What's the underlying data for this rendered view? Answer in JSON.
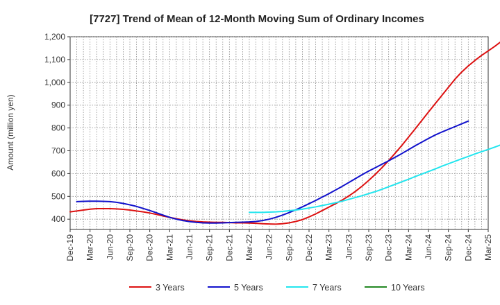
{
  "chart_data": {
    "type": "line",
    "title": "[7727]  Trend of Mean of 12-Month Moving Sum of Ordinary Incomes",
    "xlabel": "",
    "ylabel": "Amount (million yen)",
    "ylim": [
      355,
      1200
    ],
    "y_ticks": [
      400,
      500,
      600,
      700,
      800,
      900,
      1000,
      1100,
      1200
    ],
    "y_tick_labels": [
      "400",
      "500",
      "600",
      "700",
      "800",
      "900",
      "1,000",
      "1,100",
      "1,200"
    ],
    "x_tick_labels": [
      "Dec-19",
      "Mar-20",
      "Jun-20",
      "Sep-20",
      "Dec-20",
      "Mar-21",
      "Jun-21",
      "Sep-21",
      "Dec-21",
      "Mar-22",
      "Jun-22",
      "Sep-22",
      "Dec-22",
      "Mar-23",
      "Jun-23",
      "Sep-23",
      "Dec-23",
      "Mar-24",
      "Jun-24",
      "Sep-24",
      "Dec-24",
      "Mar-25"
    ],
    "grid": true,
    "legend_position": "bottom",
    "series": [
      {
        "name": "3 Years",
        "color": "#dd1111",
        "start_month": 0,
        "values": [
          432,
          436,
          440,
          444,
          446,
          446,
          446,
          445,
          443,
          440,
          436,
          432,
          427,
          421,
          414,
          408,
          402,
          397,
          393,
          390,
          388,
          387,
          386,
          386,
          385,
          384,
          384,
          383,
          382,
          380,
          379,
          378,
          380,
          384,
          390,
          398,
          410,
          423,
          438,
          453,
          468,
          484,
          502,
          522,
          545,
          570,
          597,
          626,
          657,
          690,
          724,
          760,
          796,
          833,
          870,
          906,
          942,
          978,
          1014,
          1045,
          1072,
          1096,
          1118,
          1138,
          1158,
          1180
        ]
      },
      {
        "name": "5 Years",
        "color": "#1111cc",
        "start_month": 1,
        "values": [
          477,
          478,
          479,
          479,
          478,
          477,
          474,
          469,
          463,
          456,
          447,
          438,
          428,
          418,
          408,
          400,
          394,
          389,
          386,
          384,
          383,
          383,
          384,
          385,
          386,
          387,
          388,
          390,
          394,
          400,
          408,
          418,
          429,
          441,
          454,
          468,
          482,
          497,
          512,
          528,
          544,
          561,
          578,
          595,
          611,
          626,
          641,
          656,
          672,
          688,
          705,
          722,
          738,
          754,
          769,
          782,
          794,
          806,
          818,
          830
        ]
      },
      {
        "name": "7 Years",
        "color": "#22e5ee",
        "start_month": 27,
        "values": [
          430,
          430,
          430,
          431,
          432,
          434,
          437,
          440,
          444,
          449,
          454,
          460,
          466,
          472,
          479,
          487,
          495,
          503,
          512,
          521,
          531,
          542,
          553,
          564,
          575,
          587,
          598,
          609,
          620,
          632,
          643,
          654,
          665,
          675,
          686,
          696,
          706,
          716,
          727
        ]
      },
      {
        "name": "10 Years",
        "color": "#228822",
        "start_month": 0,
        "values": []
      }
    ]
  }
}
